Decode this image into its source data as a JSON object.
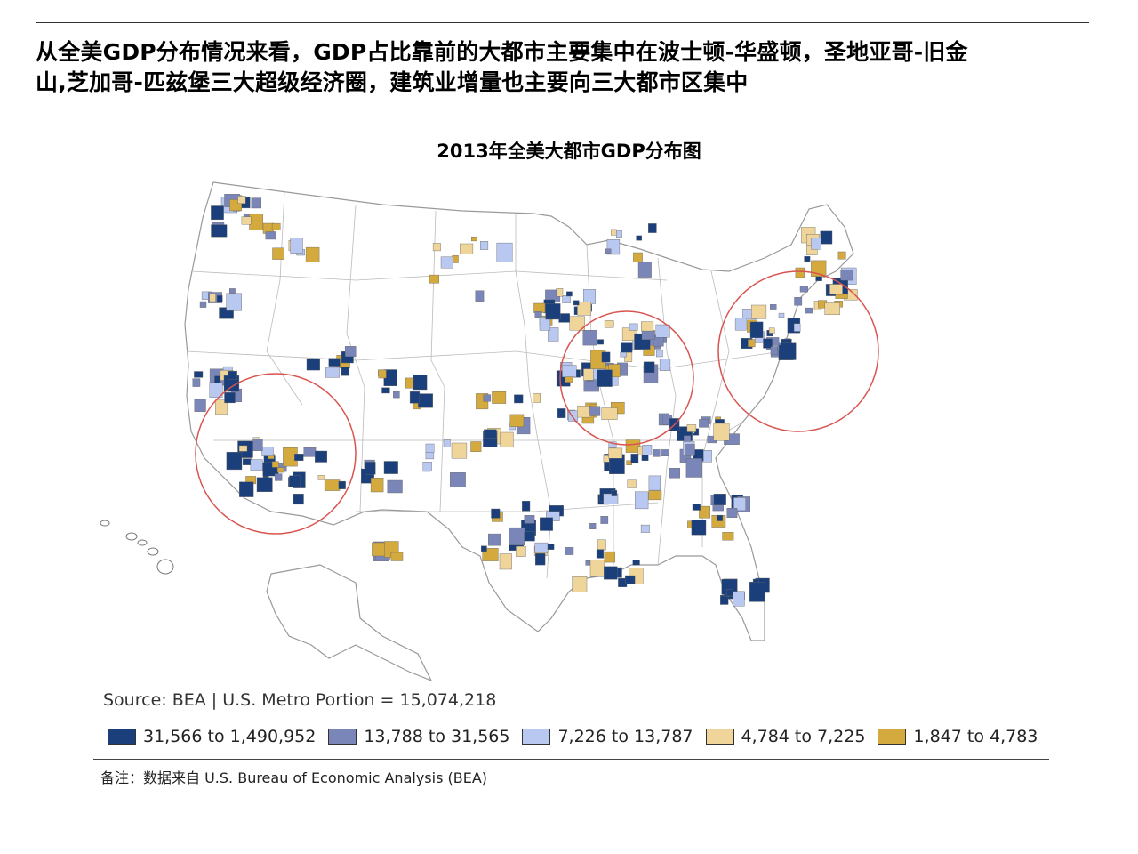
{
  "headline": {
    "line1": "从全美GDP分布情况来看，GDP占比靠前的大都市主要集中在波士顿-华盛顿，圣地亚哥-旧金",
    "line2": "山,芝加哥-匹兹堡三大超级经济圈，建筑业增量也主要向三大都市区集中"
  },
  "map": {
    "title": "2013年全美大都市GDP分布图",
    "highlight_circles": [
      "San Diego - San Francisco",
      "Chicago - Pittsburgh",
      "Boston - Washington"
    ],
    "colors": {
      "circle": "#d9534f",
      "border": "#999999",
      "land": "#ffffff"
    }
  },
  "source_text": "Source: BEA | U.S. Metro Portion = 15,074,218",
  "legend": [
    {
      "label": "31,566 to 1,490,952",
      "color": "#1a3f7a"
    },
    {
      "label": "13,788 to 31,565",
      "color": "#7b86b8"
    },
    {
      "label": "7,226 to 13,787",
      "color": "#b9c8f0"
    },
    {
      "label": "4,784 to 7,225",
      "color": "#efd59a"
    },
    {
      "label": "1,847 to 4,783",
      "color": "#d4a93d"
    }
  ],
  "note": "备注：数据来自 U.S. Bureau of Economic Analysis (BEA)"
}
